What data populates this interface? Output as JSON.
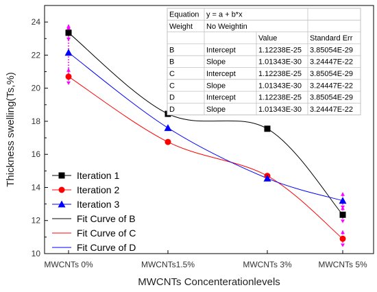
{
  "chart_data": {
    "type": "line",
    "xlabel": "MWCNTs Concenterationlevels",
    "ylabel": "Thickness swelling(Ts,%)",
    "categories": [
      "MWCNTs 0%",
      "MWCNTs1.5%",
      "MWCNTs 3%",
      "MWCNTs 5%"
    ],
    "ylim": [
      10,
      25
    ],
    "yticks": [
      10,
      12,
      14,
      16,
      18,
      20,
      22,
      24
    ],
    "grid": false,
    "legend_position": "bottom-left",
    "series": [
      {
        "name": "Iteration 1",
        "values": [
          23.35,
          18.45,
          17.55,
          12.35
        ],
        "color": "#000000",
        "marker": "square",
        "error_bars": [
          0.5,
          null,
          null,
          0.5
        ]
      },
      {
        "name": "Iteration 2",
        "values": [
          20.7,
          16.75,
          14.7,
          10.9
        ],
        "color": "#ff0000",
        "marker": "circle",
        "error_bars": [
          0.5,
          null,
          null,
          0.5
        ]
      },
      {
        "name": "Iteration 3",
        "values": [
          22.15,
          17.6,
          14.55,
          13.2
        ],
        "color": "#0000ff",
        "marker": "triangle",
        "error_bars": [
          1.6,
          null,
          null,
          0.5
        ]
      }
    ],
    "fit_curves": [
      {
        "name": "Fit Curve of B",
        "color": "#000000",
        "of": "Iteration 1"
      },
      {
        "name": "Fit Curve of C",
        "color": "#ff0000",
        "of": "Iteration 2"
      },
      {
        "name": "Fit Curve of D",
        "color": "#0000ff",
        "of": "Iteration 3"
      }
    ],
    "error_bar_color": "#ff00ff",
    "fit_table": {
      "equation_label": "Equation",
      "equation": "y = a + b*x",
      "weight_label": "Weight",
      "weight": "No Weightin",
      "columns": [
        "",
        "",
        "Value",
        "Standard Err"
      ],
      "rows": [
        [
          "B",
          "Intercept",
          "1.12238E-25",
          "3.85054E-29"
        ],
        [
          "B",
          "Slope",
          "1.01343E-30",
          "3.24447E-22"
        ],
        [
          "C",
          "Intercept",
          "1.12238E-25",
          "3.85054E-29"
        ],
        [
          "C",
          "Slope",
          "1.01343E-30",
          "3.24447E-22"
        ],
        [
          "D",
          "Intercept",
          "1.12238E-25",
          "3.85054E-29"
        ],
        [
          "D",
          "Slope",
          "1.01343E-30",
          "3.24447E-22"
        ]
      ]
    }
  }
}
